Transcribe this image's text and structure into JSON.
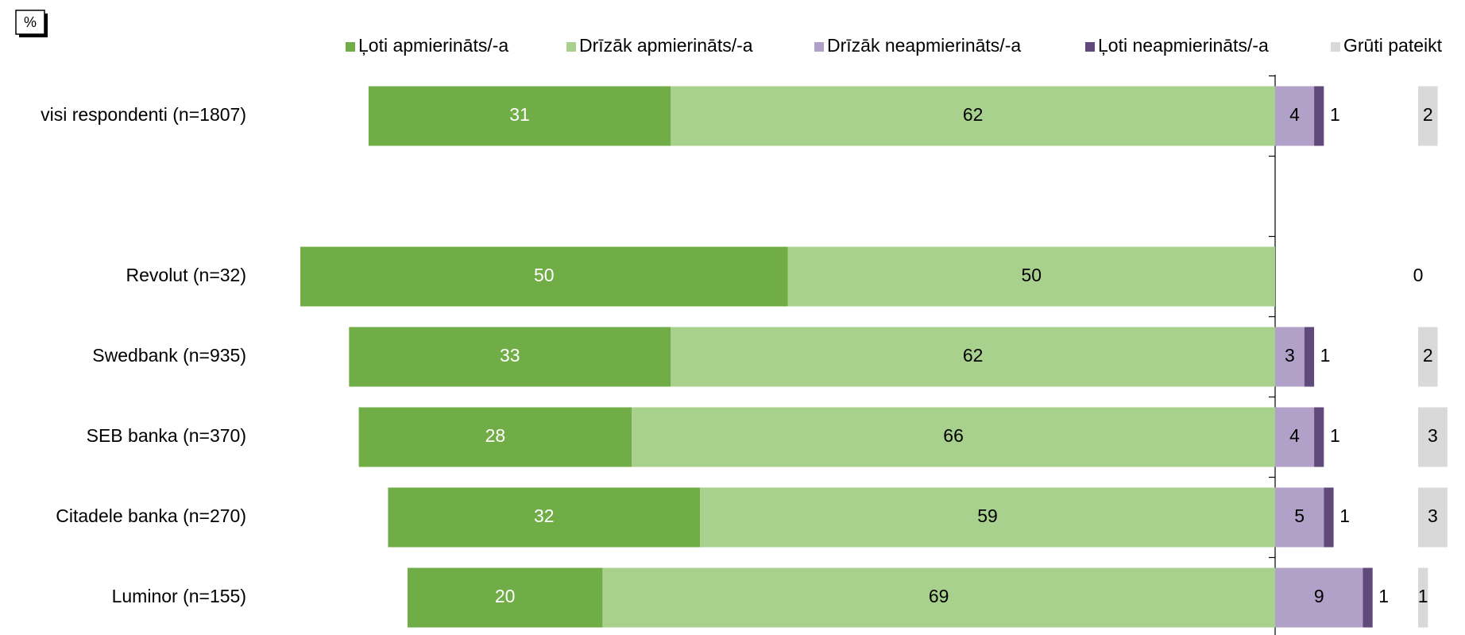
{
  "chart_data": {
    "type": "diverging-bar",
    "unit": "%",
    "categories": [
      "visi respondenti (n=1807)",
      null,
      "Revolut (n=32)",
      "Swedbank (n=935)",
      "SEB banka (n=370)",
      "Citadele banka (n=270)",
      "Luminor (n=155)"
    ],
    "series": [
      {
        "name": "Ļoti apmierināts/-a",
        "color": "#70ad47",
        "side": "left",
        "values": [
          31,
          null,
          50,
          33,
          28,
          32,
          20
        ]
      },
      {
        "name": "Drīzāk apmierināts/-a",
        "color": "#a9d18e",
        "side": "left",
        "values": [
          62,
          null,
          50,
          62,
          66,
          59,
          69
        ]
      },
      {
        "name": "Drīzāk neapmierināts/-a",
        "color": "#b1a0c7",
        "side": "right",
        "values": [
          4,
          null,
          null,
          3,
          4,
          5,
          9
        ]
      },
      {
        "name": "Ļoti neapmierināts/-a",
        "color": "#604a7b",
        "side": "right",
        "values": [
          1,
          null,
          null,
          1,
          1,
          1,
          1
        ]
      },
      {
        "name": "Grūti pateikt",
        "color": "#d9d9d9",
        "side": "separate",
        "values": [
          2,
          null,
          0,
          2,
          3,
          3,
          1
        ]
      }
    ]
  }
}
